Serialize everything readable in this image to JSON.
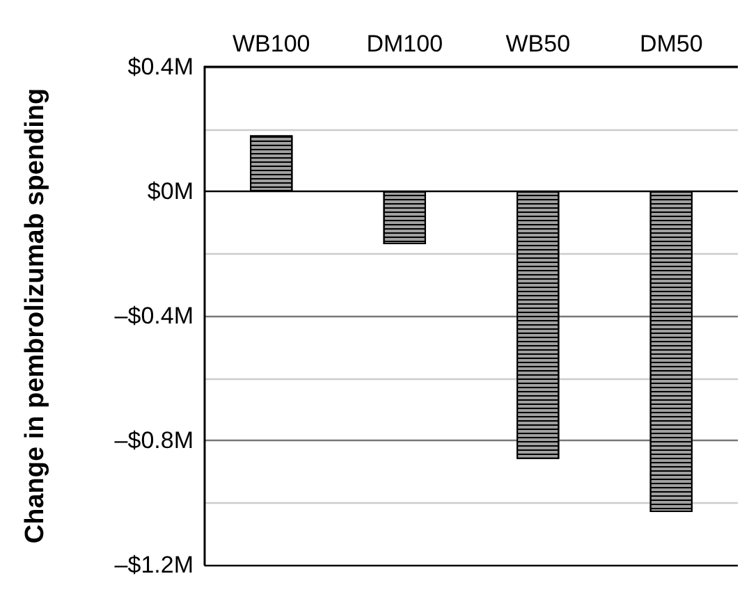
{
  "chart_data": {
    "type": "bar",
    "ylabel": "Change in pembrolizumab spending",
    "categories": [
      "WB100",
      "DM100",
      "WB50",
      "DM50"
    ],
    "values": [
      0.18,
      -0.17,
      -0.86,
      -1.03
    ],
    "color": "#a0a0a0",
    "ylim": [
      -1.2,
      0.4
    ],
    "yticks": [
      {
        "value": -1.2,
        "label": "–$1.2M"
      },
      {
        "value": -1.0,
        "label": null
      },
      {
        "value": -0.8,
        "label": "–$0.8M"
      },
      {
        "value": -0.6,
        "label": null
      },
      {
        "value": -0.4,
        "label": "–$0.4M"
      },
      {
        "value": -0.2,
        "label": null
      },
      {
        "value": 0,
        "label": "$0M"
      },
      {
        "value": 0.2,
        "label": null
      },
      {
        "value": 0.4,
        "label": "$0.4M"
      }
    ],
    "grid": "y"
  }
}
